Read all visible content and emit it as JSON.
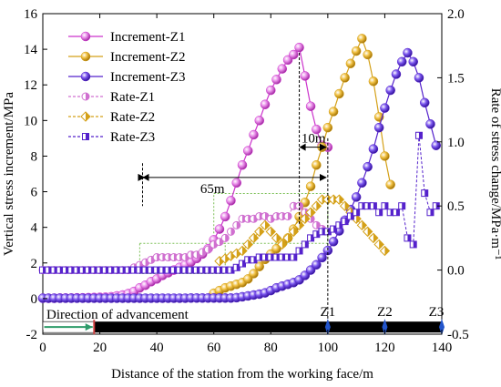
{
  "chart_data": {
    "type": "line",
    "xlabel": "Distance of the station from the working face/m",
    "ylabel": "Vertical stress increment/MPa",
    "y2label": "Rate of stress change/MPa·m⁻¹",
    "xlim": [
      0,
      140
    ],
    "ylim": [
      -2,
      16
    ],
    "y2lim": [
      -0.5,
      2.0
    ],
    "xticks": [
      "0",
      "20",
      "40",
      "60",
      "80",
      "100",
      "120",
      "140"
    ],
    "yticks": [
      "-2",
      "0",
      "2",
      "4",
      "6",
      "8",
      "10",
      "12",
      "14",
      "16"
    ],
    "y2ticks": [
      "-0.5",
      "0.0",
      "0.5",
      "1.0",
      "1.5",
      "2.0"
    ],
    "grid": false,
    "legend_position": "top-left",
    "colors": {
      "z1": "#cc33cc",
      "z2": "#d4a017",
      "z3": "#5522cc",
      "z1_rate": "#d070d0",
      "z2_rate": "#d4a017",
      "z3_rate": "#5522cc",
      "arrow": "#2e9b6a",
      "bar": "#000000",
      "station": "#2255cc"
    },
    "series": [
      {
        "name": "Increment-Z1",
        "axis": "left",
        "style": "solid-sphere",
        "color_key": "z1",
        "x": [
          0,
          2,
          4,
          6,
          8,
          10,
          12,
          14,
          16,
          18,
          20,
          22,
          24,
          26,
          28,
          30,
          32,
          34,
          36,
          38,
          40,
          42,
          44,
          46,
          48,
          50,
          52,
          54,
          56,
          58,
          60,
          62,
          64,
          66,
          68,
          70,
          72,
          74,
          76,
          78,
          80,
          82,
          84,
          86,
          88,
          90,
          92,
          94,
          96,
          98,
          100
        ],
        "y": [
          0.02,
          0.02,
          0.02,
          0.03,
          0.03,
          0.03,
          0.04,
          0.04,
          0.05,
          0.06,
          0.07,
          0.08,
          0.1,
          0.15,
          0.2,
          0.28,
          0.4,
          0.6,
          0.75,
          0.95,
          1.1,
          1.3,
          1.45,
          1.6,
          1.75,
          1.9,
          2.05,
          2.25,
          2.5,
          2.8,
          3.3,
          3.9,
          4.6,
          5.5,
          6.5,
          7.5,
          8.3,
          9.2,
          10.0,
          10.9,
          11.7,
          12.3,
          12.9,
          13.4,
          13.7,
          14.1,
          12.5,
          10.8,
          9.5,
          8.6,
          8.5
        ]
      },
      {
        "name": "Increment-Z2",
        "axis": "left",
        "style": "solid-sphere",
        "color_key": "z2",
        "x": [
          60,
          62,
          64,
          66,
          68,
          70,
          72,
          74,
          76,
          78,
          80,
          82,
          84,
          86,
          88,
          90,
          92,
          94,
          96,
          98,
          100,
          102,
          104,
          106,
          108,
          110,
          112,
          114,
          116,
          118,
          120,
          122
        ],
        "y": [
          0.3,
          0.45,
          0.6,
          0.7,
          0.8,
          0.9,
          1.1,
          1.4,
          1.8,
          2.2,
          2.5,
          2.8,
          3.1,
          3.4,
          3.9,
          4.6,
          5.4,
          6.3,
          7.5,
          8.5,
          9.6,
          10.5,
          11.5,
          12.4,
          13.2,
          13.9,
          14.6,
          13.7,
          12.2,
          10.2,
          8.0,
          6.4
        ]
      },
      {
        "name": "Increment-Z3",
        "axis": "left",
        "style": "solid-sphere",
        "color_key": "z3",
        "x": [
          0,
          2,
          4,
          6,
          8,
          10,
          12,
          14,
          16,
          18,
          20,
          22,
          24,
          26,
          28,
          30,
          32,
          34,
          36,
          38,
          40,
          42,
          44,
          46,
          48,
          50,
          52,
          54,
          56,
          58,
          60,
          62,
          64,
          66,
          68,
          70,
          72,
          74,
          76,
          78,
          80,
          82,
          84,
          86,
          88,
          90,
          92,
          94,
          96,
          98,
          100,
          102,
          104,
          106,
          108,
          110,
          112,
          114,
          116,
          118,
          120,
          122,
          124,
          126,
          128,
          130,
          132,
          134,
          136,
          138
        ],
        "y": [
          0.02,
          0.02,
          0.02,
          0.02,
          0.02,
          0.02,
          0.02,
          0.02,
          0.02,
          0.02,
          0.02,
          0.02,
          0.02,
          0.02,
          0.02,
          0.02,
          0.02,
          0.02,
          0.02,
          0.02,
          0.02,
          0.02,
          0.02,
          0.02,
          0.02,
          0.02,
          0.03,
          0.03,
          0.03,
          0.03,
          0.03,
          0.03,
          0.03,
          0.03,
          0.05,
          0.1,
          0.15,
          0.2,
          0.25,
          0.32,
          0.45,
          0.6,
          0.7,
          0.8,
          0.9,
          1.05,
          1.3,
          1.6,
          1.9,
          2.3,
          2.7,
          3.2,
          3.8,
          4.4,
          5.0,
          5.7,
          6.5,
          7.4,
          8.4,
          9.6,
          10.7,
          11.7,
          12.6,
          13.3,
          13.8,
          13.3,
          12.4,
          11.0,
          9.8,
          8.6
        ]
      },
      {
        "name": "Rate-Z1",
        "axis": "right",
        "style": "dashed-half-circle",
        "color_key": "z1_rate",
        "x": [
          0,
          2,
          4,
          6,
          8,
          10,
          12,
          14,
          16,
          18,
          20,
          22,
          24,
          26,
          28,
          30,
          32,
          34,
          36,
          38,
          40,
          42,
          44,
          46,
          48,
          50,
          52,
          54,
          56,
          58,
          60,
          62,
          64,
          66,
          68,
          70,
          72,
          74,
          76,
          78,
          80,
          82,
          84,
          86,
          88,
          90,
          92,
          94,
          96,
          98
        ],
        "y": [
          0.0,
          0.0,
          0.0,
          0.0,
          0.0,
          0.0,
          0.0,
          0.0,
          0.0,
          0.0,
          0.0,
          0.0,
          0.0,
          0.0,
          0.0,
          0.0,
          0.02,
          0.04,
          0.06,
          0.08,
          0.1,
          0.1,
          0.1,
          0.1,
          0.1,
          0.1,
          0.12,
          0.12,
          0.14,
          0.16,
          0.2,
          0.22,
          0.25,
          0.3,
          0.35,
          0.4,
          0.4,
          0.4,
          0.42,
          0.42,
          0.4,
          0.42,
          0.42,
          0.42,
          0.5,
          0.5,
          0.45,
          0.4,
          0.35,
          0.32
        ]
      },
      {
        "name": "Rate-Z2",
        "axis": "right",
        "style": "dashed-half-diamond",
        "color_key": "z2_rate",
        "x": [
          62,
          64,
          66,
          68,
          70,
          72,
          74,
          76,
          78,
          80,
          82,
          84,
          86,
          88,
          90,
          92,
          94,
          96,
          98,
          100,
          102,
          104,
          106,
          108,
          110,
          112,
          114,
          116,
          118,
          120
        ],
        "y": [
          0.07,
          0.09,
          0.11,
          0.13,
          0.15,
          0.2,
          0.25,
          0.3,
          0.35,
          0.3,
          0.25,
          0.2,
          0.25,
          0.3,
          0.35,
          0.4,
          0.45,
          0.5,
          0.55,
          0.55,
          0.55,
          0.55,
          0.5,
          0.45,
          0.4,
          0.35,
          0.3,
          0.25,
          0.2,
          0.15
        ]
      },
      {
        "name": "Rate-Z3",
        "axis": "right",
        "style": "dashed-half-square",
        "color_key": "z3_rate",
        "x": [
          0,
          2,
          4,
          6,
          8,
          10,
          12,
          14,
          16,
          18,
          20,
          22,
          24,
          26,
          28,
          30,
          32,
          34,
          36,
          38,
          40,
          42,
          44,
          46,
          48,
          50,
          52,
          54,
          56,
          58,
          60,
          62,
          64,
          66,
          68,
          70,
          72,
          74,
          76,
          78,
          80,
          82,
          84,
          86,
          88,
          90,
          92,
          94,
          96,
          98,
          100,
          102,
          104,
          106,
          108,
          110,
          112,
          114,
          116,
          118,
          120,
          122,
          124,
          126,
          128,
          130,
          132,
          134,
          136,
          138
        ],
        "y": [
          0.0,
          0.0,
          0.0,
          0.0,
          0.0,
          0.0,
          0.0,
          0.0,
          0.0,
          0.0,
          0.0,
          0.0,
          0.0,
          0.0,
          0.0,
          0.0,
          0.0,
          0.0,
          0.0,
          0.0,
          0.0,
          0.0,
          0.0,
          0.0,
          0.0,
          0.0,
          0.0,
          0.0,
          0.0,
          0.0,
          0.0,
          0.0,
          0.0,
          0.0,
          0.02,
          0.05,
          0.08,
          0.08,
          0.1,
          0.1,
          0.1,
          0.1,
          0.1,
          0.1,
          0.1,
          0.15,
          0.2,
          0.25,
          0.28,
          0.3,
          0.3,
          0.32,
          0.35,
          0.38,
          0.42,
          0.45,
          0.5,
          0.5,
          0.5,
          0.45,
          0.5,
          0.45,
          0.45,
          0.5,
          0.25,
          0.2,
          1.05,
          0.6,
          0.45,
          0.5
        ]
      }
    ],
    "annotations": {
      "dim_65m": {
        "text": "65m",
        "x1": 35,
        "x2": 100,
        "y": 6.8
      },
      "dim_10m": {
        "text": "10m",
        "x1": 90,
        "x2": 100,
        "y": 8.5
      },
      "advance_label": "Direction of advancement",
      "stations": [
        {
          "label": "Z1",
          "x": 100
        },
        {
          "label": "Z2",
          "x": 120
        },
        {
          "label": "Z3",
          "x": 140
        }
      ]
    }
  }
}
